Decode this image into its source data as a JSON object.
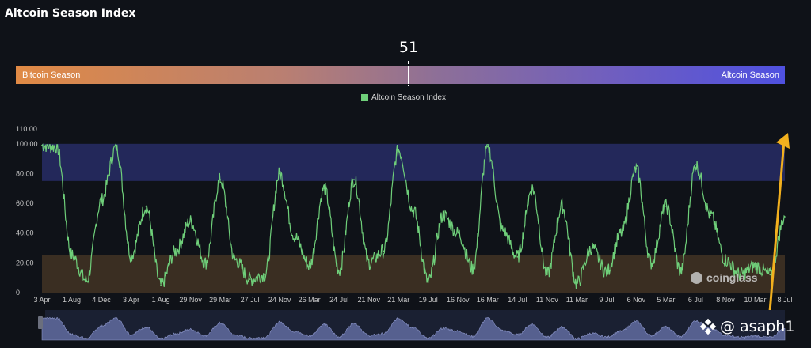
{
  "header": {
    "title": "Altcoin Season Index"
  },
  "current": {
    "value": "51"
  },
  "season_bar": {
    "left_label": "Bitcoin Season",
    "right_label": "Altcoin Season"
  },
  "watermark": {
    "text": "coinglass"
  },
  "credit": {
    "handle": "@ asaph1"
  },
  "colors": {
    "line": "#6fcf7a",
    "altcoin_zone": "#23285a",
    "bitcoin_zone": "#3a2e22",
    "arrow": "#f2b01e",
    "background": "#0f1218"
  },
  "chart_data": {
    "type": "line",
    "legend": "Altcoin Season Index",
    "legend_position": "top-center",
    "y_ticks": [
      "110.00",
      "100.00",
      "80.00",
      "60.00",
      "40.00",
      "20.00",
      "0"
    ],
    "ylim": [
      0,
      110
    ],
    "x_ticks": [
      "3 Apr",
      "1 Aug",
      "4 Dec",
      "3 Apr",
      "1 Aug",
      "29 Nov",
      "29 Mar",
      "27 Jul",
      "24 Nov",
      "26 Mar",
      "24 Jul",
      "21 Nov",
      "21 Mar",
      "19 Jul",
      "16 Nov",
      "16 Mar",
      "14 Jul",
      "11 Nov",
      "11 Mar",
      "9 Jul",
      "6 Nov",
      "5 Mar",
      "6 Jul",
      "8 Nov",
      "10 Mar",
      "8 Jul"
    ],
    "zones": [
      {
        "label": "Altcoin Season",
        "from": 75,
        "to": 100
      },
      {
        "label": "Bitcoin Season",
        "from": 0,
        "to": 25
      }
    ],
    "x_index": [
      0,
      0.5,
      1,
      1.5,
      2,
      2.5,
      3,
      3.5,
      4,
      4.5,
      5,
      5.5,
      6,
      6.5,
      7,
      7.5,
      8,
      8.5,
      9,
      9.5,
      10,
      10.5,
      11,
      11.5,
      12,
      12.5,
      13,
      13.5,
      14,
      14.5,
      15,
      15.5,
      16,
      16.5,
      17,
      17.5,
      18,
      18.5,
      19,
      19.5,
      20,
      20.5,
      21,
      21.5,
      22,
      22.5,
      23,
      23.5,
      24,
      24.5,
      25
    ],
    "values": [
      99,
      98,
      25,
      8,
      62,
      98,
      25,
      58,
      5,
      28,
      48,
      20,
      76,
      22,
      9,
      12,
      80,
      38,
      18,
      70,
      15,
      76,
      20,
      28,
      96,
      55,
      7,
      52,
      40,
      16,
      98,
      42,
      24,
      70,
      12,
      58,
      6,
      30,
      14,
      40,
      83,
      20,
      58,
      14,
      86,
      52,
      22,
      12,
      18,
      12,
      51
    ]
  }
}
